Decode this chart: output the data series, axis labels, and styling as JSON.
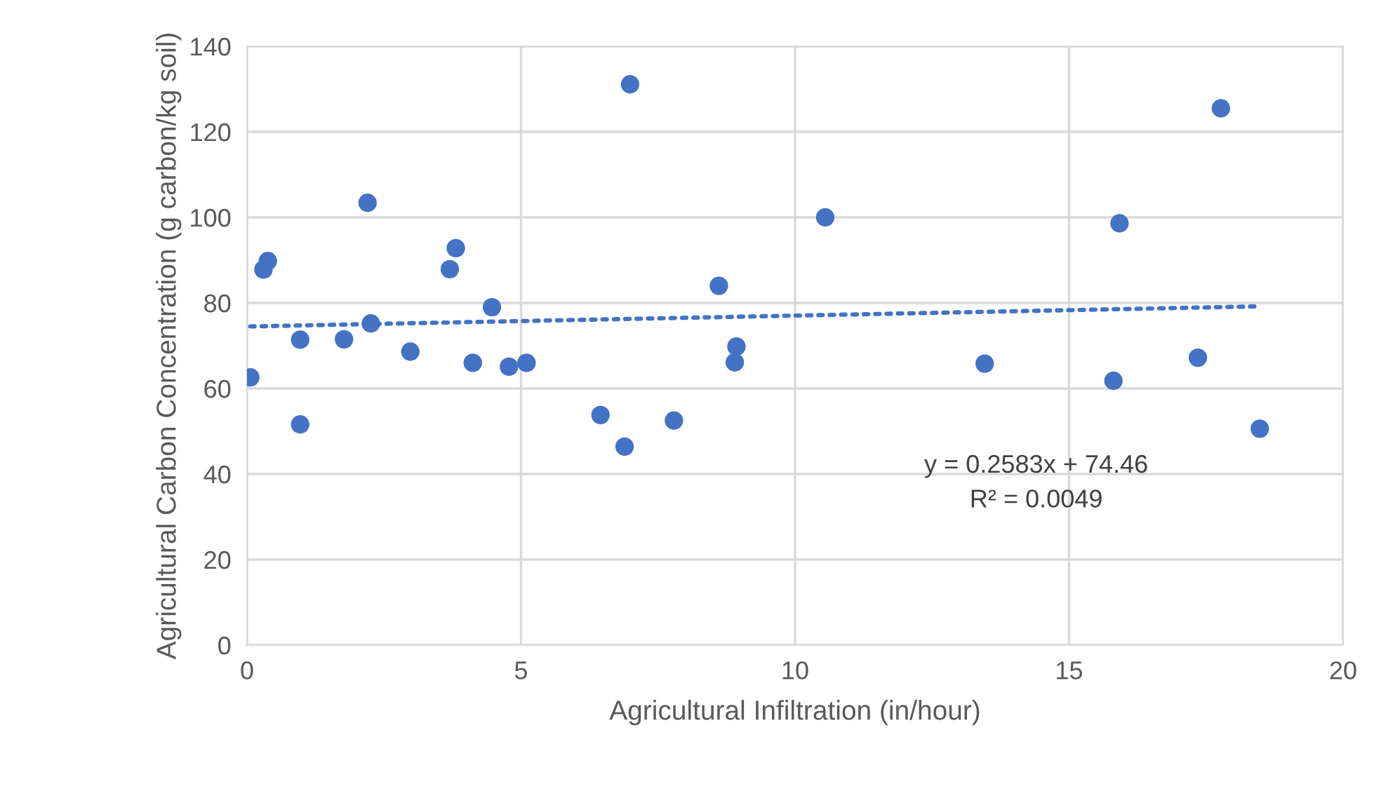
{
  "chart_data": {
    "type": "scatter",
    "xlabel": "Agricultural Infiltration (in/hour)",
    "ylabel": "Agricultural Carbon Concentration (g carbon/kg soil)",
    "xlim": [
      0,
      20
    ],
    "xticks": [
      0,
      5,
      10,
      15,
      20
    ],
    "ylim": [
      0,
      140
    ],
    "yticks": [
      0,
      20,
      40,
      60,
      80,
      100,
      120,
      140
    ],
    "grid": true,
    "marker": "circle",
    "series": [
      {
        "color": "#4472c4",
        "x": [
          0.06,
          0.3,
          0.38,
          0.97,
          0.97,
          1.77,
          2.2,
          2.26,
          2.98,
          3.7,
          3.81,
          4.12,
          4.47,
          4.78,
          5.1,
          6.45,
          6.89,
          6.99,
          7.79,
          8.61,
          8.93,
          8.9,
          10.55,
          13.46,
          15.81,
          15.92,
          17.35,
          17.77,
          18.48
        ],
        "values": [
          62.6,
          87.8,
          89.8,
          71.4,
          51.6,
          71.5,
          103.4,
          75.2,
          68.6,
          87.9,
          92.8,
          66,
          79,
          65.1,
          66,
          53.8,
          46.4,
          131.1,
          52.5,
          84,
          69.8,
          66.1,
          100,
          65.8,
          61.8,
          98.6,
          67.2,
          125.5,
          50.6
        ]
      },
      {
        "type": "line",
        "color": "#4472c4",
        "line_style": "dotted",
        "marker": "none",
        "x": [
          0.06,
          18.48
        ],
        "values": [
          74.5,
          79.2
        ]
      }
    ],
    "annotations": [
      "y = 0.2583x + 74.46\nR² = 0.0049"
    ]
  }
}
